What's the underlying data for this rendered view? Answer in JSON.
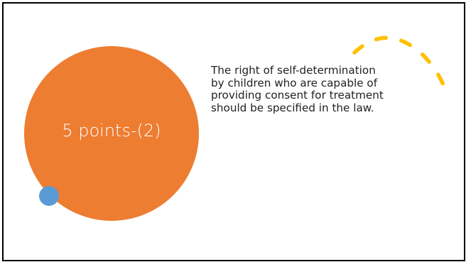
{
  "slide": {
    "circle_label": "5 points-(2)",
    "body_lines": [
      "The right of self-determination",
      "by children who are capable of",
      "providing consent for treatment",
      "should be specified in the law."
    ]
  },
  "colors": {
    "main_circle": "#ED7D31",
    "small_circle": "#5B9BD5",
    "dashed_arc": "#FFC000",
    "border": "#000000",
    "text": "#222222"
  },
  "icons": {
    "main_circle": "orange-circle",
    "small_circle": "blue-dot",
    "arc": "yellow-dashed-arc"
  }
}
